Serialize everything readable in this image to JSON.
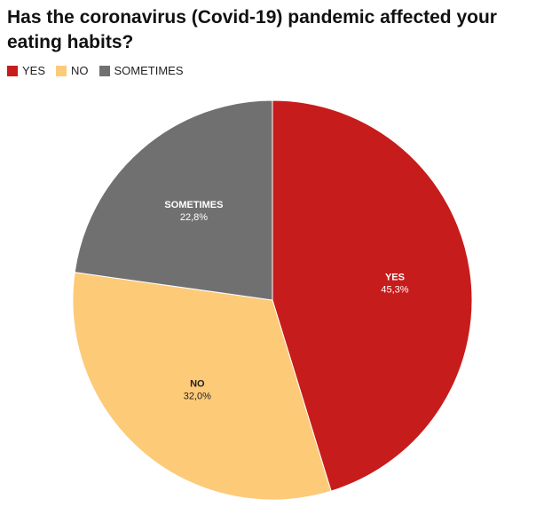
{
  "chart_data": {
    "type": "pie",
    "title": "Has the coronavirus (Covid-19) pandemic affected your eating habits?",
    "categories": [
      "YES",
      "NO",
      "SOMETIMES"
    ],
    "values": [
      45.3,
      32.0,
      22.8
    ],
    "value_labels": [
      "45,3%",
      "32,0%",
      "22,8%"
    ],
    "colors": [
      "#c71c1c",
      "#fdca78",
      "#707070"
    ],
    "legend": {
      "placement": "top-left",
      "entries": [
        "YES",
        "NO",
        "SOMETIMES"
      ]
    },
    "start_angle": "top",
    "direction": "clockwise"
  }
}
